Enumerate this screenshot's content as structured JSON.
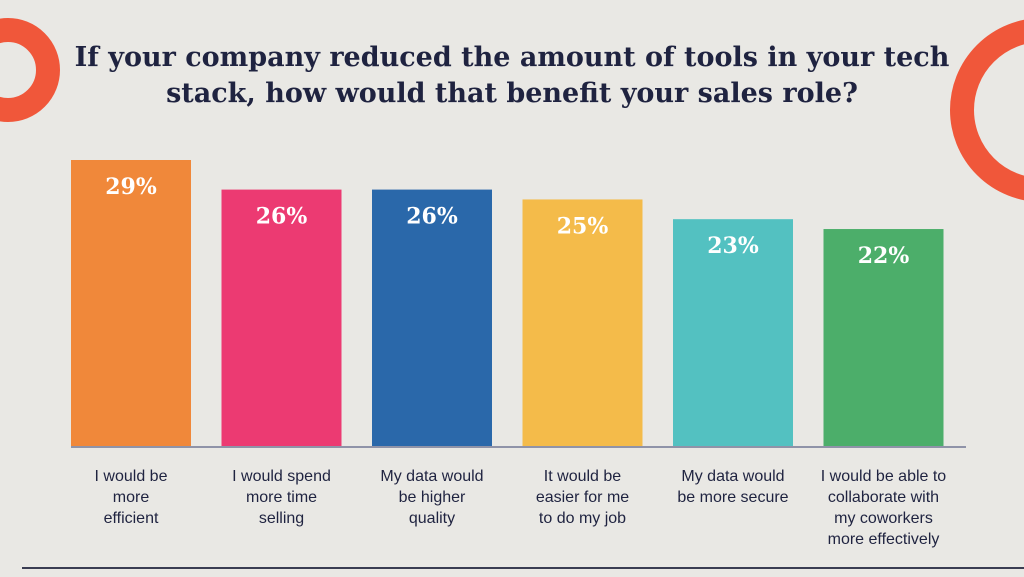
{
  "chart_data": {
    "type": "bar",
    "title_lines": [
      "If your company reduced the amount of tools in your tech",
      "stack, how would that benefit your sales role?"
    ],
    "categories": [
      [
        "I would be",
        "more",
        "efficient"
      ],
      [
        "I would spend",
        "more time",
        "selling"
      ],
      [
        "My data would",
        "be higher",
        "quality"
      ],
      [
        "It would be",
        "easier for me",
        "to do my job"
      ],
      [
        "My data would",
        "be more secure"
      ],
      [
        "I would be able to",
        "collaborate with",
        "my coworkers",
        "more effectively"
      ]
    ],
    "values": [
      29,
      26,
      26,
      25,
      23,
      22
    ],
    "value_labels": [
      "29%",
      "26%",
      "26%",
      "25%",
      "23%",
      "22%"
    ],
    "colors": [
      "#f0883a",
      "#ec3a72",
      "#2a68aa",
      "#f4bb4a",
      "#53c1c1",
      "#4cae6a"
    ],
    "ylim": [
      0,
      29
    ],
    "grid": false,
    "legend": "none"
  },
  "decor": {
    "accent_color": "#f0573a"
  }
}
